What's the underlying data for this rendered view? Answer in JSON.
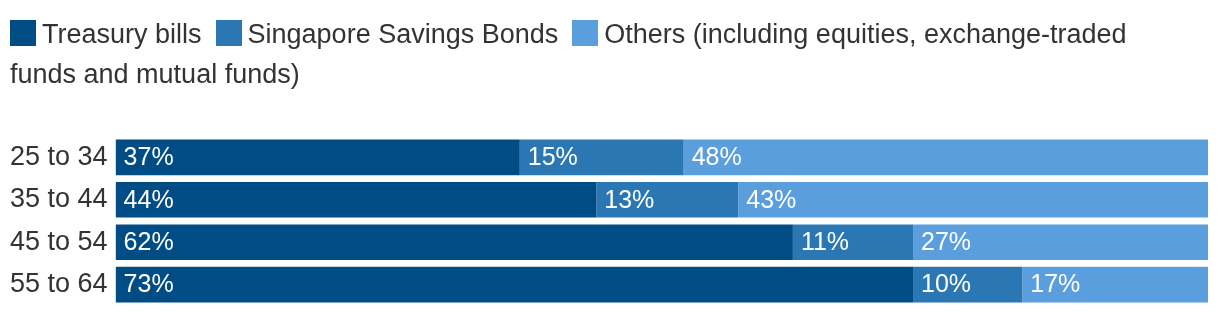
{
  "chart_data": {
    "type": "bar",
    "orientation": "horizontal",
    "stacked": true,
    "legend": "top left",
    "xlim": [
      0,
      100
    ],
    "tick_labels": "y",
    "categories": [
      "25 to 34",
      "35 to 44",
      "45 to 54",
      "55 to 64"
    ],
    "series": [
      {
        "name": "Treasury bills",
        "color": "#004c84",
        "values": [
          37,
          44,
          62,
          73
        ],
        "value_labels": [
          "37%",
          "44%",
          "62%",
          "73%"
        ]
      },
      {
        "name": "Singapore Savings Bonds",
        "color": "#2a77b3",
        "values": [
          15,
          13,
          11,
          10
        ],
        "value_labels": [
          "15%",
          "13%",
          "11%",
          "10%"
        ]
      },
      {
        "name": "Others (including equities, exchange-traded funds and mutual funds)",
        "color": "#5b9ede",
        "values": [
          48,
          43,
          27,
          17
        ],
        "value_labels": [
          "48%",
          "43%",
          "27%",
          "17%"
        ]
      }
    ]
  }
}
